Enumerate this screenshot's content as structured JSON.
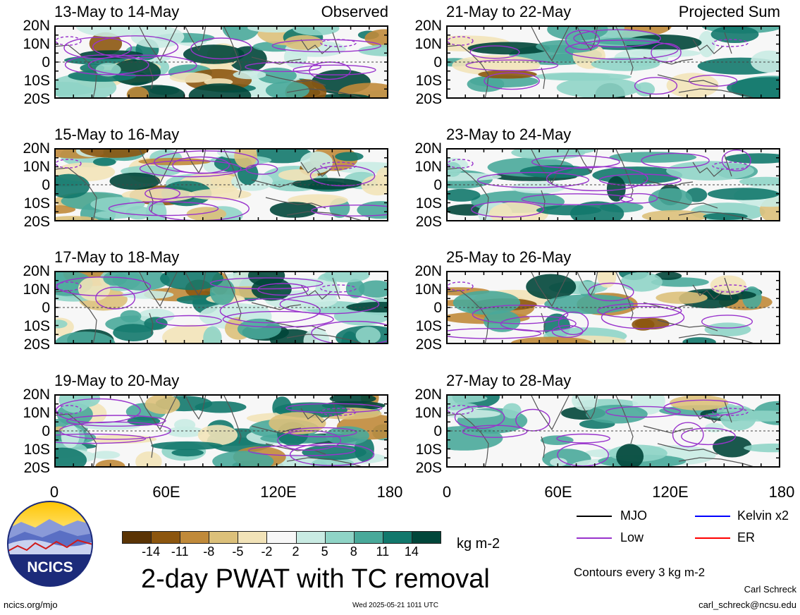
{
  "panels": [
    {
      "title": "13-May to 14-May",
      "tag": "Observed"
    },
    {
      "title": "15-May to 16-May",
      "tag": ""
    },
    {
      "title": "17-May to 18-May",
      "tag": ""
    },
    {
      "title": "19-May to 20-May",
      "tag": ""
    },
    {
      "title": "21-May to 22-May",
      "tag": "Projected Sum"
    },
    {
      "title": "23-May to 24-May",
      "tag": ""
    },
    {
      "title": "25-May to 26-May",
      "tag": ""
    },
    {
      "title": "27-May to 28-May",
      "tag": ""
    }
  ],
  "lat_ticks": [
    "20N",
    "10N",
    "0",
    "10S",
    "20S"
  ],
  "lon_ticks": [
    "0",
    "60E",
    "120E",
    "180"
  ],
  "colorbar": {
    "labels": [
      "-14",
      "-11",
      "-8",
      "-5",
      "-2",
      "2",
      "5",
      "8",
      "11",
      "14"
    ],
    "colors": [
      "#5a3405",
      "#8c560f",
      "#c08a3a",
      "#dcc07a",
      "#f2e3b8",
      "#f7f7f7",
      "#c9ebe3",
      "#8fd4c6",
      "#49a99a",
      "#12786c",
      "#01463a"
    ],
    "units": "kg m-2"
  },
  "legend": {
    "mjo": {
      "label": "MJO",
      "color": "#000000"
    },
    "kelvin": {
      "label": "Kelvin x2",
      "color": "#0000ff"
    },
    "low": {
      "label": "Low",
      "color": "#9933cc"
    },
    "er": {
      "label": "ER",
      "color": "#ff0000"
    }
  },
  "title": "2-day PWAT with TC removal",
  "contours_note": "Contours every 3 kg m-2",
  "logo_text": "NCICS",
  "site": "ncics.org/mjo",
  "timestamp": "Wed 2025-05-21 1011 UTC",
  "author": "Carl Schreck",
  "email": "carl_schreck@ncsu.edu"
}
